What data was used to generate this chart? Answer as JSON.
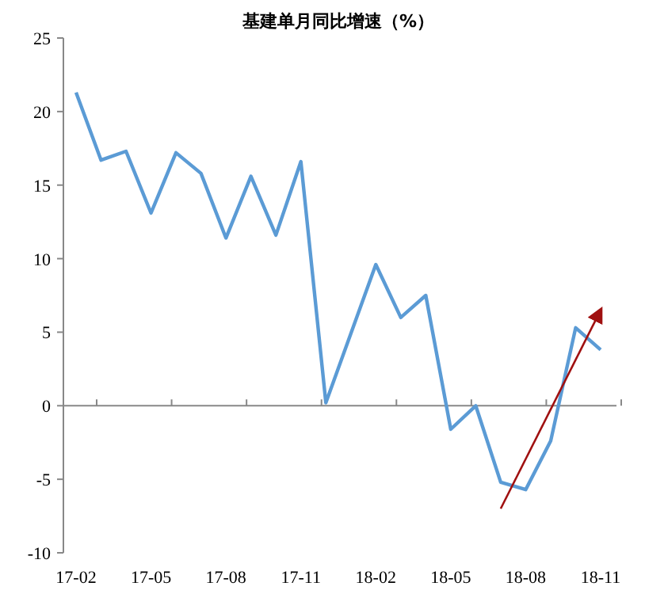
{
  "chart_data": {
    "type": "line",
    "title": "基建单月同比增速（%）",
    "categories": [
      "17-02",
      null,
      null,
      "17-05",
      null,
      null,
      "17-08",
      null,
      null,
      "17-11",
      null,
      null,
      "18-02",
      null,
      null,
      "18-05",
      null,
      null,
      "18-08",
      null,
      null,
      "18-11"
    ],
    "series": [
      {
        "color": "#5b9bd5",
        "values": [
          21.3,
          16.7,
          17.3,
          13.1,
          17.2,
          15.8,
          11.4,
          15.6,
          11.6,
          16.6,
          0.2,
          4.9,
          9.6,
          6.0,
          7.5,
          -1.6,
          0.0,
          -5.2,
          -5.7,
          -2.4,
          5.3,
          3.8
        ]
      }
    ],
    "ylim": [
      -10,
      25
    ],
    "yticks": [
      -10,
      -5,
      0,
      5,
      10,
      15,
      20,
      25
    ],
    "marker": "none",
    "line_style": "solid"
  }
}
